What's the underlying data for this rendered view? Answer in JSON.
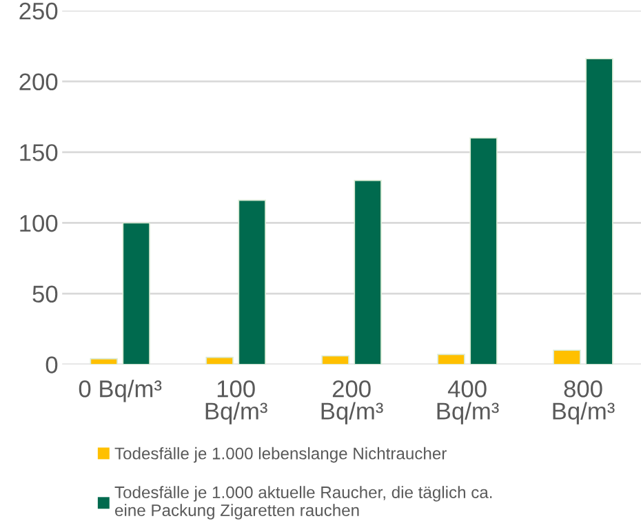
{
  "chart_data": {
    "type": "bar",
    "categories": [
      "0 Bq/m³",
      "100 Bq/m³",
      "200 Bq/m³",
      "400 Bq/m³",
      "800 Bq/m³"
    ],
    "series": [
      {
        "name": "Todesfälle je 1.000 lebenslange Nichtraucher",
        "color": "#ffc000",
        "values": [
          4,
          5,
          6,
          7,
          10
        ]
      },
      {
        "name": "Todesfälle je 1.000 aktuelle Raucher, die täglich ca. eine Packung Zigaretten rauchen",
        "color": "#006a4e",
        "values": [
          100,
          116,
          130,
          160,
          216
        ]
      }
    ],
    "ylim": [
      0,
      250
    ],
    "yticks": [
      0,
      50,
      100,
      150,
      200,
      250
    ],
    "grid": "y",
    "legend": "bottom"
  }
}
